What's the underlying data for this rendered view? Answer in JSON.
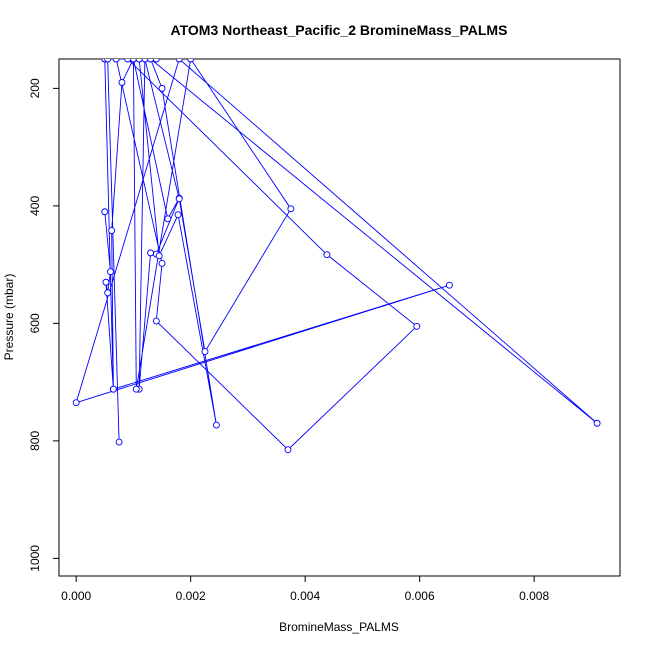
{
  "chart_data": {
    "type": "line",
    "title": "ATOM3 Northeast_Pacific_2 BromineMass_PALMS",
    "xlabel": "BromineMass_PALMS",
    "ylabel": "Pressure (mbar)",
    "xlim": [
      -0.0003,
      0.0095
    ],
    "ylim": [
      1030,
      150
    ],
    "y_reversed": true,
    "x_ticks": [
      0.0,
      0.002,
      0.004,
      0.006,
      0.008
    ],
    "x_tick_labels": [
      "0.000",
      "0.002",
      "0.004",
      "0.006",
      "0.008"
    ],
    "y_ticks": [
      200,
      400,
      600,
      800,
      1000
    ],
    "y_tick_labels": [
      "200",
      "400",
      "600",
      "800",
      "1000"
    ],
    "grid": false,
    "line_color": "#0000ff",
    "marker": "open-circle",
    "series": [
      {
        "x": [
          0.0005,
          0.0006,
          0.00055,
          0.00052,
          0.00065,
          0.00062,
          0.0008,
          0.001,
          0.0016,
          0.0018,
          0.0014,
          0.0013,
          0.0011,
          0.0012,
          0.0018,
          0.00225,
          0.00375,
          0.002,
          0.00105,
          0.001,
          0.0009,
          0.00438,
          0.00595,
          0.0037,
          0.0014,
          0.0015,
          0.0007,
          0.0011,
          0.00145,
          0.00178,
          0.00245,
          0.0015,
          0.0013,
          0.0091,
          0.0018,
          0.0,
          0.00652,
          0.00065,
          0.0005,
          0.0014,
          0.0005,
          0.00055,
          0.00075
        ],
        "y": [
          410,
          512,
          548,
          530,
          712,
          442,
          190,
          150,
          422,
          387,
          482,
          480,
          712,
          150,
          388,
          648,
          405,
          150,
          712,
          150,
          150,
          483,
          605,
          815,
          596,
          498,
          150,
          150,
          485,
          415,
          773,
          200,
          150,
          770,
          150,
          735,
          535,
          712,
          150,
          150,
          150,
          150,
          802
        ]
      }
    ]
  }
}
